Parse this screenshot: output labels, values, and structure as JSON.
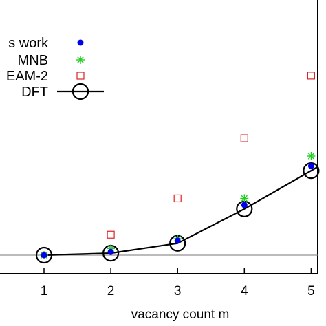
{
  "chart_data": {
    "type": "scatter",
    "title": "",
    "xlabel": "vacancy count m",
    "ylabel": "",
    "xlim": [
      0.3,
      5.1
    ],
    "ylim": [
      -0.3,
      4.6
    ],
    "x_ticks": [
      1,
      2,
      3,
      4,
      5
    ],
    "x_tick_labels": [
      "1",
      "2",
      "3",
      "4",
      "5"
    ],
    "grid": false,
    "zero_line": 0,
    "legend_position": "top-left",
    "series": [
      {
        "name": "This work",
        "label_visible": "s work",
        "marker": "filled-circle",
        "color": "#0000ee",
        "x": [
          1,
          2,
          3,
          4,
          5
        ],
        "y": [
          0.0,
          0.05,
          0.22,
          0.76,
          1.35
        ]
      },
      {
        "name": "MNB",
        "marker": "asterisk",
        "color": "#22cc22",
        "x": [
          1,
          2,
          3,
          4,
          5
        ],
        "y": [
          0.0,
          0.1,
          0.25,
          0.86,
          1.5
        ]
      },
      {
        "name": "EAM-2",
        "label_visible": "EAM-2",
        "marker": "open-square",
        "color": "#dd2222",
        "x": [
          2,
          3,
          4,
          5
        ],
        "y": [
          0.31,
          0.86,
          1.77,
          2.72
        ]
      },
      {
        "name": "DFT",
        "marker": "open-circle-line",
        "color": "#000000",
        "x": [
          1,
          2,
          3,
          4,
          5
        ],
        "y": [
          0.0,
          0.03,
          0.18,
          0.7,
          1.28
        ]
      }
    ]
  }
}
